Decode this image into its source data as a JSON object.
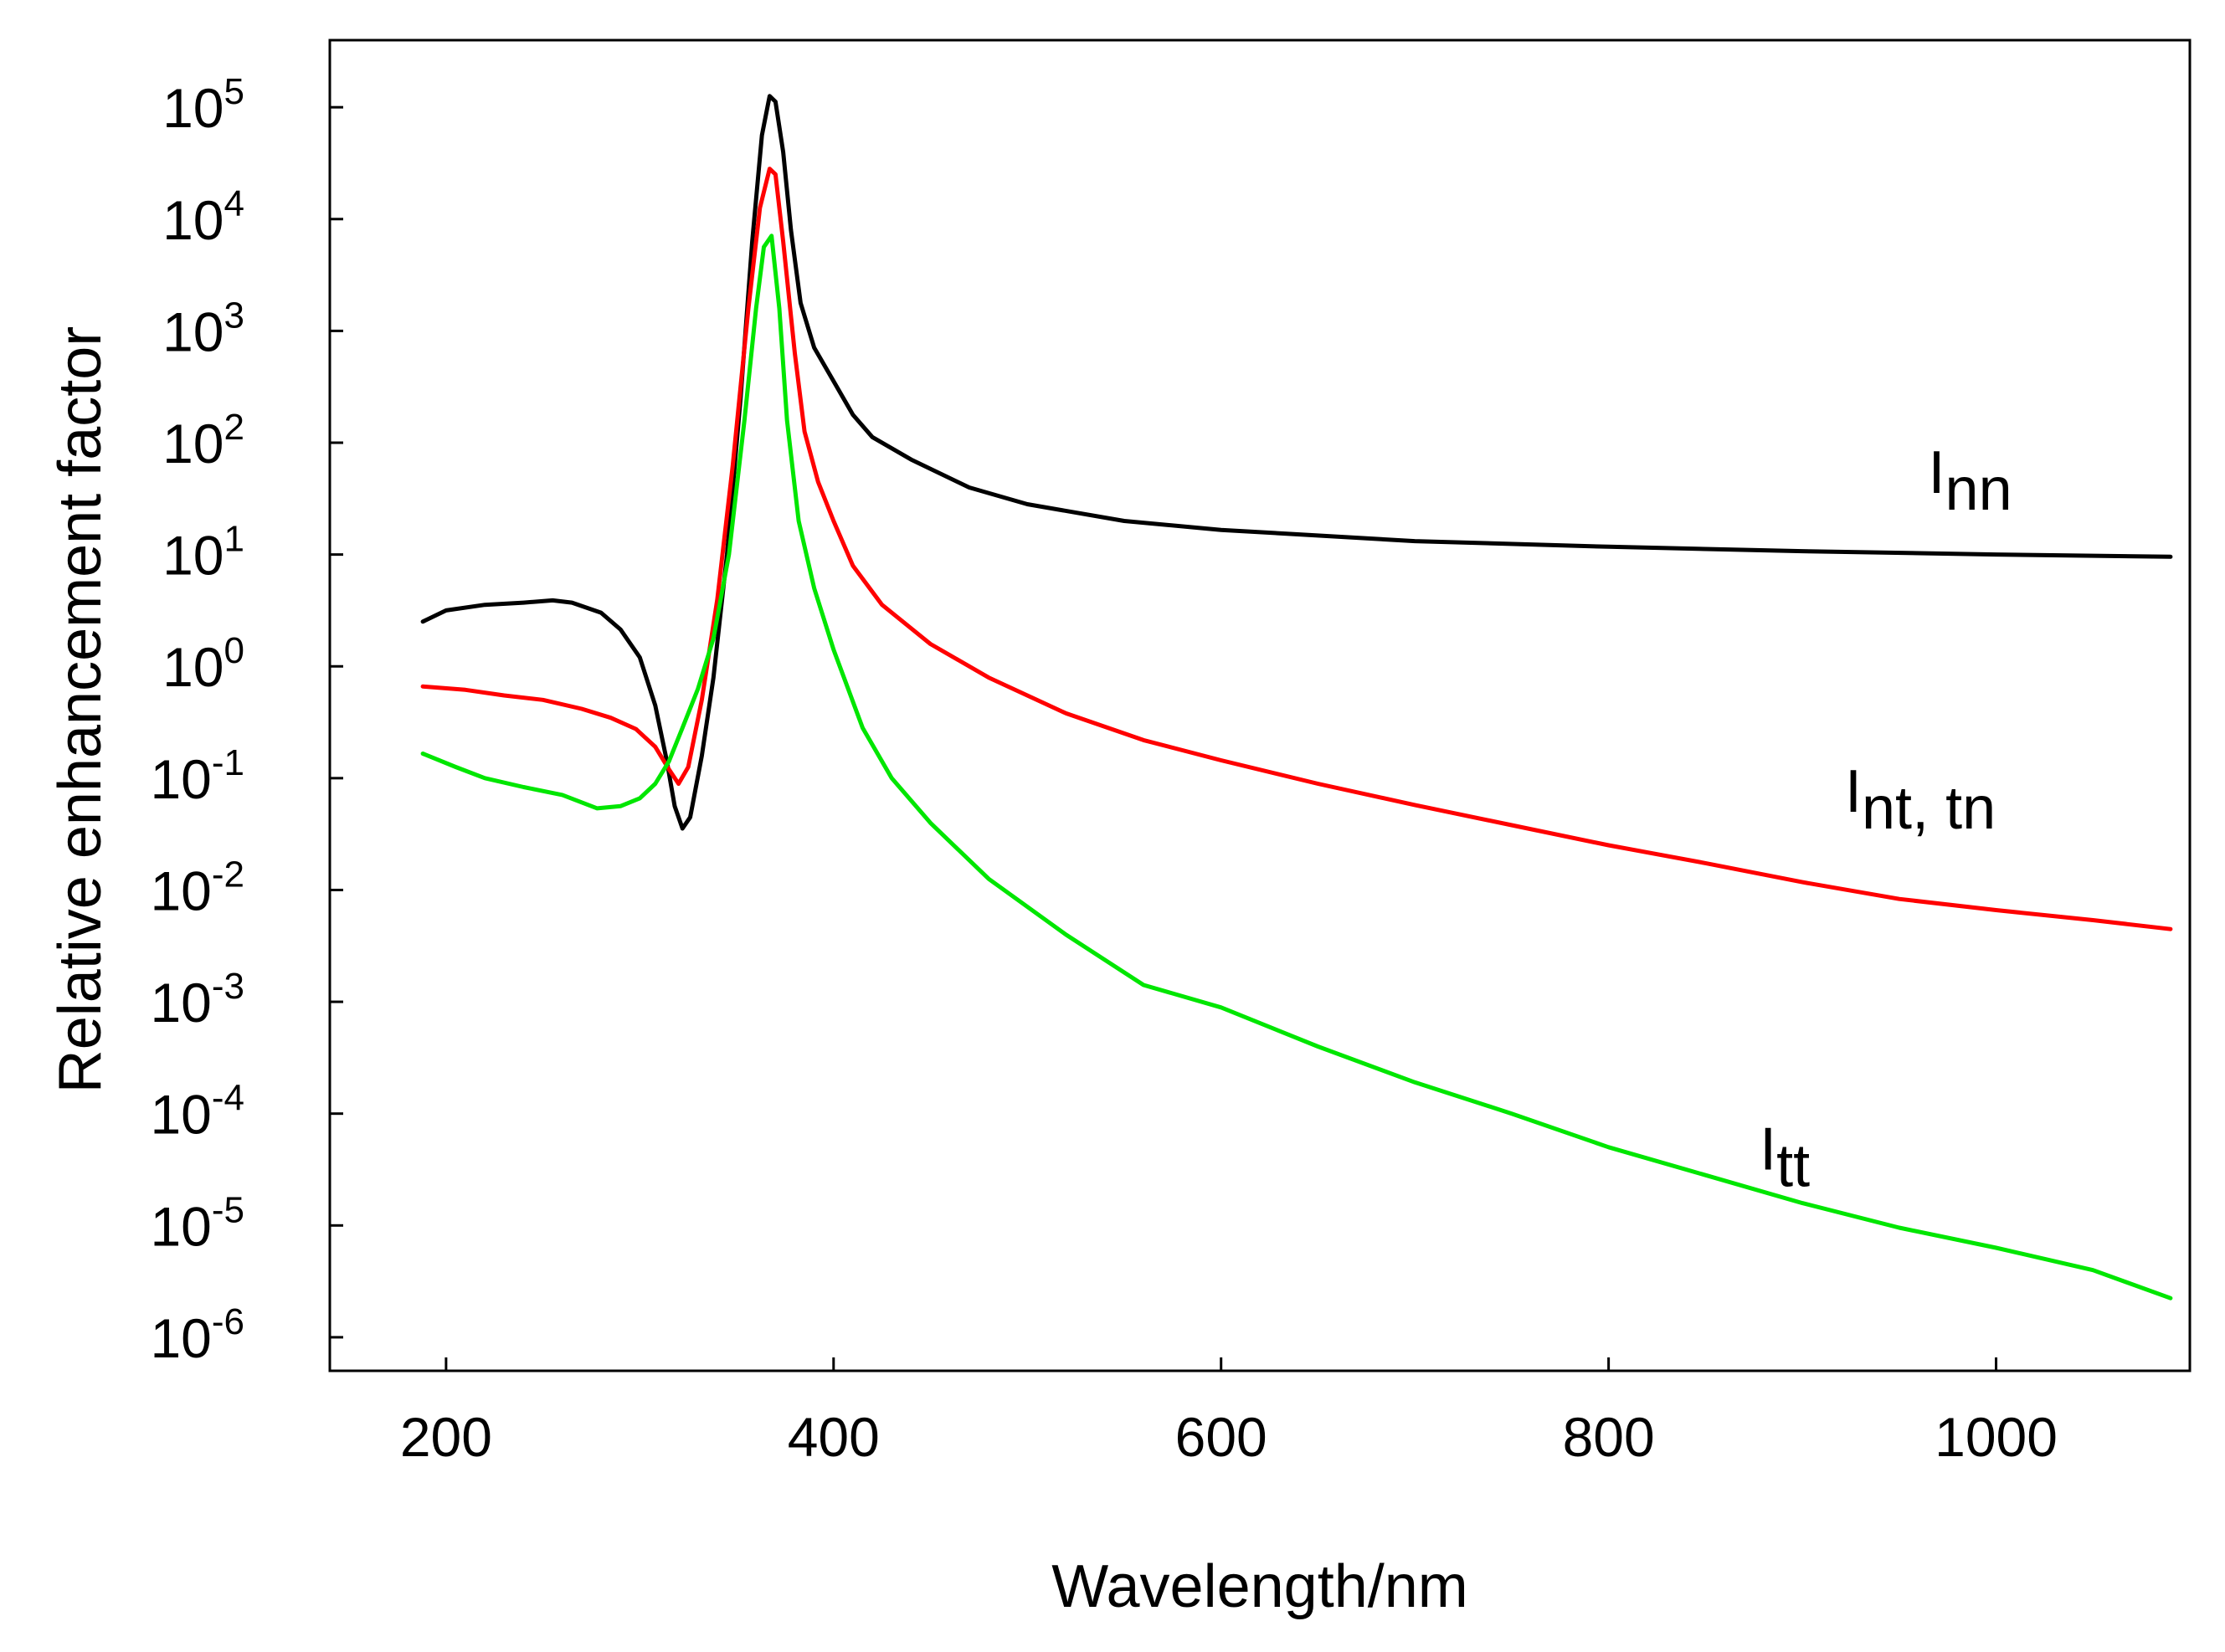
{
  "chart_data": {
    "type": "line",
    "title": "",
    "xlabel": "Wavelength/nm",
    "ylabel": "Relative enhancement factor",
    "xscale": "linear",
    "yscale": "log",
    "xlim": [
      140,
      1100
    ],
    "ylim": [
      -6.3,
      5.6
    ],
    "xticks": [
      200,
      400,
      600,
      800,
      1000
    ],
    "xtick_labels": [
      "200",
      "400",
      "600",
      "800",
      "1000"
    ],
    "yticks": [
      {
        "exp": 5,
        "base": "10",
        "sup": "5"
      },
      {
        "exp": 4,
        "base": "10",
        "sup": "4"
      },
      {
        "exp": 3,
        "base": "10",
        "sup": "3"
      },
      {
        "exp": 2,
        "base": "10",
        "sup": "2"
      },
      {
        "exp": 1,
        "base": "10",
        "sup": "1"
      },
      {
        "exp": 0,
        "base": "10",
        "sup": "0"
      },
      {
        "exp": -1,
        "base": "10",
        "sup": "-1"
      },
      {
        "exp": -2,
        "base": "10",
        "sup": "-2"
      },
      {
        "exp": -3,
        "base": "10",
        "sup": "-3"
      },
      {
        "exp": -4,
        "base": "10",
        "sup": "-4"
      },
      {
        "exp": -5,
        "base": "10",
        "sup": "-5"
      },
      {
        "exp": -6,
        "base": "10",
        "sup": "-6"
      }
    ],
    "grid": false,
    "series": [
      {
        "name": "Inn",
        "label_main": "I",
        "label_sub": "nn",
        "color": "#000000",
        "label_at": {
          "x": 965,
          "logy": 1.55
        },
        "points": [
          [
            188,
            0.4
          ],
          [
            200,
            0.5
          ],
          [
            220,
            0.55
          ],
          [
            240,
            0.57
          ],
          [
            255,
            0.59
          ],
          [
            265,
            0.57
          ],
          [
            280,
            0.48
          ],
          [
            290,
            0.33
          ],
          [
            300,
            0.08
          ],
          [
            308,
            -0.35
          ],
          [
            314,
            -0.85
          ],
          [
            318,
            -1.25
          ],
          [
            322,
            -1.45
          ],
          [
            326,
            -1.35
          ],
          [
            332,
            -0.8
          ],
          [
            338,
            -0.1
          ],
          [
            345,
            1.0
          ],
          [
            352,
            2.4
          ],
          [
            358,
            3.8
          ],
          [
            363,
            4.75
          ],
          [
            367,
            5.1
          ],
          [
            370,
            5.05
          ],
          [
            374,
            4.6
          ],
          [
            378,
            3.9
          ],
          [
            383,
            3.25
          ],
          [
            390,
            2.85
          ],
          [
            400,
            2.55
          ],
          [
            410,
            2.25
          ],
          [
            420,
            2.05
          ],
          [
            440,
            1.85
          ],
          [
            470,
            1.6
          ],
          [
            500,
            1.45
          ],
          [
            550,
            1.3
          ],
          [
            600,
            1.22
          ],
          [
            700,
            1.12
          ],
          [
            800,
            1.07
          ],
          [
            900,
            1.03
          ],
          [
            1000,
            1.0
          ],
          [
            1090,
            0.98
          ]
        ]
      },
      {
        "name": "Int, tn",
        "label_main": "I",
        "label_sub": "nt, tn",
        "color": "#ff0000",
        "label_at": {
          "x": 922,
          "logy": -1.3
        },
        "points": [
          [
            188,
            -0.18
          ],
          [
            210,
            -0.21
          ],
          [
            230,
            -0.26
          ],
          [
            250,
            -0.3
          ],
          [
            270,
            -0.38
          ],
          [
            285,
            -0.46
          ],
          [
            298,
            -0.56
          ],
          [
            308,
            -0.72
          ],
          [
            315,
            -0.92
          ],
          [
            320,
            -1.05
          ],
          [
            325,
            -0.9
          ],
          [
            332,
            -0.3
          ],
          [
            340,
            0.6
          ],
          [
            348,
            1.8
          ],
          [
            356,
            3.2
          ],
          [
            362,
            4.1
          ],
          [
            367,
            4.45
          ],
          [
            370,
            4.4
          ],
          [
            374,
            3.8
          ],
          [
            380,
            2.8
          ],
          [
            385,
            2.1
          ],
          [
            392,
            1.65
          ],
          [
            400,
            1.3
          ],
          [
            410,
            0.9
          ],
          [
            425,
            0.55
          ],
          [
            450,
            0.2
          ],
          [
            480,
            -0.1
          ],
          [
            520,
            -0.42
          ],
          [
            560,
            -0.66
          ],
          [
            600,
            -0.84
          ],
          [
            650,
            -1.05
          ],
          [
            700,
            -1.24
          ],
          [
            750,
            -1.42
          ],
          [
            800,
            -1.6
          ],
          [
            850,
            -1.76
          ],
          [
            900,
            -1.93
          ],
          [
            950,
            -2.08
          ],
          [
            1000,
            -2.18
          ],
          [
            1050,
            -2.27
          ],
          [
            1090,
            -2.35
          ]
        ]
      },
      {
        "name": "Itt",
        "label_main": "I",
        "label_sub": "tt",
        "color": "#00e600",
        "label_at": {
          "x": 878,
          "logy": -4.5
        },
        "points": [
          [
            188,
            -0.78
          ],
          [
            205,
            -0.9
          ],
          [
            220,
            -1.0
          ],
          [
            240,
            -1.08
          ],
          [
            260,
            -1.15
          ],
          [
            278,
            -1.27
          ],
          [
            290,
            -1.25
          ],
          [
            300,
            -1.18
          ],
          [
            308,
            -1.05
          ],
          [
            315,
            -0.85
          ],
          [
            322,
            -0.55
          ],
          [
            330,
            -0.2
          ],
          [
            338,
            0.25
          ],
          [
            346,
            1.0
          ],
          [
            354,
            2.2
          ],
          [
            360,
            3.2
          ],
          [
            364,
            3.75
          ],
          [
            368,
            3.85
          ],
          [
            372,
            3.2
          ],
          [
            376,
            2.2
          ],
          [
            382,
            1.3
          ],
          [
            390,
            0.7
          ],
          [
            400,
            0.15
          ],
          [
            415,
            -0.55
          ],
          [
            430,
            -1.0
          ],
          [
            450,
            -1.4
          ],
          [
            480,
            -1.9
          ],
          [
            520,
            -2.4
          ],
          [
            560,
            -2.85
          ],
          [
            600,
            -3.05
          ],
          [
            650,
            -3.4
          ],
          [
            700,
            -3.72
          ],
          [
            750,
            -4.0
          ],
          [
            800,
            -4.3
          ],
          [
            850,
            -4.55
          ],
          [
            900,
            -4.8
          ],
          [
            950,
            -5.02
          ],
          [
            1000,
            -5.2
          ],
          [
            1050,
            -5.4
          ],
          [
            1090,
            -5.65
          ]
        ]
      }
    ]
  }
}
